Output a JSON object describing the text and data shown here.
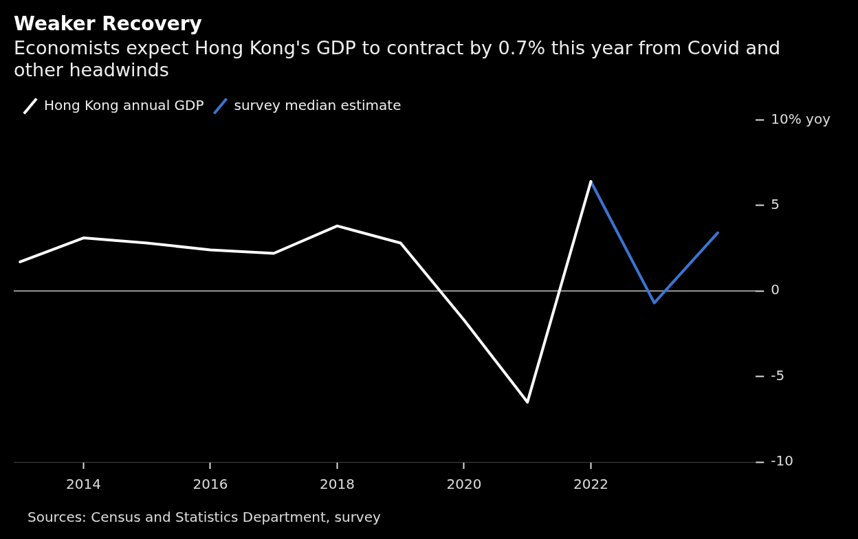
{
  "chart_data": {
    "type": "line",
    "title": "Weaker Recovery",
    "subtitle": "Economists expect Hong Kong's GDP to contract by 0.7% this year from Covid and other headwinds",
    "series": [
      {
        "name": "Hong Kong annual GDP",
        "color": "#ffffff",
        "x": [
          2013,
          2014,
          2015,
          2016,
          2017,
          2018,
          2019,
          2020,
          2021,
          2022
        ],
        "values": [
          1.7,
          3.1,
          2.8,
          2.4,
          2.2,
          3.8,
          2.8,
          -1.7,
          -6.5,
          6.4
        ]
      },
      {
        "name": "survey median estimate",
        "color": "#3b74d1",
        "x": [
          2022,
          2023,
          2024
        ],
        "values": [
          6.4,
          -0.7,
          3.4
        ]
      }
    ],
    "xlim": [
      2012.9,
      2024.6
    ],
    "xticks": [
      2014,
      2016,
      2018,
      2020,
      2022
    ],
    "ylim": [
      -10,
      10
    ],
    "yticks": [
      {
        "value": 10,
        "label": "10% yoy"
      },
      5,
      0,
      -5,
      -10
    ],
    "ref_lines": [
      {
        "axis": "y",
        "value": 0,
        "color": "#9a9a9a"
      }
    ],
    "legend": "top left",
    "grid": false,
    "marker": "none",
    "line_style": "solid",
    "annotations": [
      "Sources: Census and Statistics Department, survey"
    ]
  }
}
